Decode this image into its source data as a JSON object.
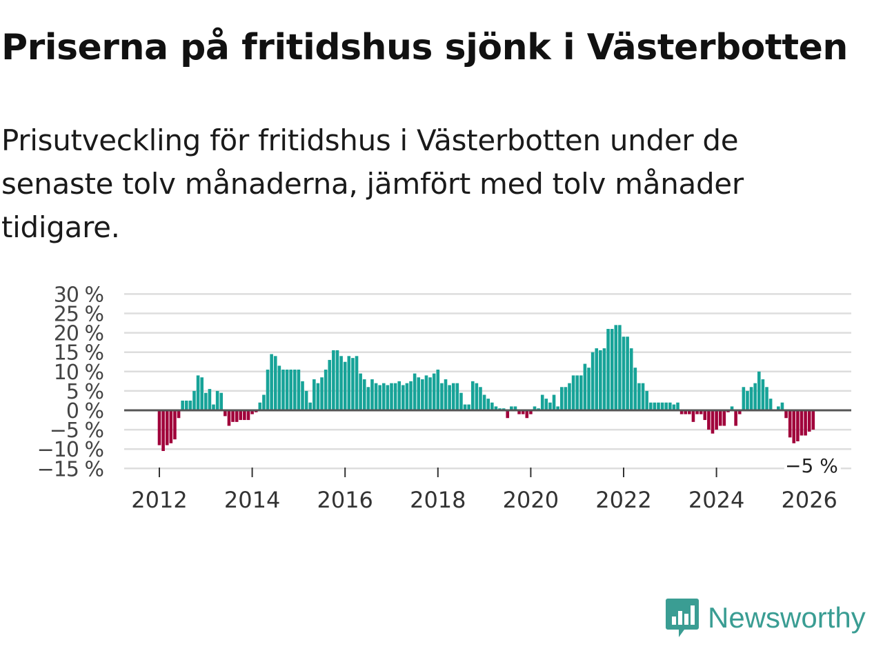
{
  "header": {
    "title": "Priserna på fritidshus sjönk i Västerbotten",
    "subtitle": "Prisutveckling för fritidshus i Västerbotten under de senaste tolv månaderna, jämfört med tolv månader tidigare."
  },
  "brand": {
    "name": "Newsworthy"
  },
  "colors": {
    "positive": "#17a398",
    "negative": "#a0003a",
    "grid": "#dddddd",
    "zero": "#555555",
    "brand": "#3a9d93"
  },
  "chart_data": {
    "type": "bar",
    "title": "Priserna på fritidshus sjönk i Västerbotten",
    "ylabel": "",
    "xlabel": "",
    "ylim": [
      -15,
      30
    ],
    "y_ticks": [
      30,
      25,
      20,
      15,
      10,
      5,
      0,
      -5,
      -10,
      -15
    ],
    "y_tick_labels": [
      "30 %",
      "25 %",
      "20 %",
      "15 %",
      "10 %",
      "5 %",
      "0 %",
      "−5 %",
      "−10 %",
      "−15 %"
    ],
    "x_ticks": [
      2012,
      2014,
      2016,
      2018,
      2020,
      2022,
      2024,
      2026
    ],
    "x_tick_labels": [
      "2012",
      "2014",
      "2016",
      "2018",
      "2020",
      "2022",
      "2024",
      "2026"
    ],
    "start_year": 2012,
    "start_month": 1,
    "last_label": "−5 %",
    "values": [
      -9,
      -10.5,
      -9,
      -8.5,
      -7.5,
      -2,
      2.5,
      2.5,
      2.5,
      5,
      9,
      8.5,
      4.5,
      5.5,
      1.5,
      5,
      4.5,
      -1.5,
      -4,
      -3,
      -3,
      -2.5,
      -2.5,
      -2.5,
      -1,
      -0.5,
      2,
      4,
      10.5,
      14.5,
      14,
      11.5,
      10.5,
      10.5,
      10.5,
      10.5,
      10.5,
      7.5,
      5,
      2,
      8,
      7,
      8.5,
      10.5,
      13,
      15.5,
      15.5,
      14,
      12.5,
      14,
      13.5,
      14,
      9.5,
      8,
      6,
      8,
      7,
      6.5,
      7,
      6.5,
      7,
      7,
      7.5,
      6.5,
      7,
      7.5,
      9.5,
      8.5,
      8,
      9,
      8.5,
      9.5,
      10.5,
      7,
      8,
      6.5,
      7,
      7,
      4.5,
      1.5,
      1.5,
      7.5,
      7,
      6,
      4,
      3,
      2,
      1,
      0.5,
      0.5,
      -2,
      1,
      1,
      -1,
      -1,
      -2,
      -1,
      1,
      0.5,
      4,
      3,
      2,
      4,
      1,
      6,
      6,
      7,
      9,
      9,
      9,
      12,
      11,
      15,
      16,
      15.5,
      16,
      21,
      21,
      22,
      22,
      19,
      19,
      16,
      11,
      7,
      7,
      5,
      2,
      2,
      2,
      2,
      2,
      2,
      1.5,
      2,
      -1,
      -1,
      -1,
      -3,
      -1,
      -1,
      -2.5,
      -5,
      -6,
      -5,
      -4,
      -4,
      -0.5,
      1,
      -4,
      -1,
      6,
      5,
      6,
      7,
      10,
      8,
      6,
      3,
      0,
      1,
      2,
      -2,
      -7,
      -8.5,
      -8,
      -6.5,
      -6.5,
      -5.5,
      -5
    ]
  }
}
